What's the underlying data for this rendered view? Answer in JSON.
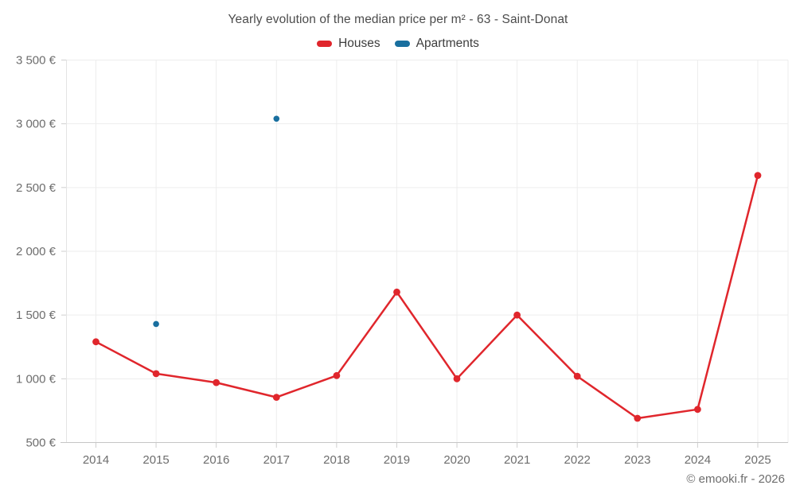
{
  "chart_data": {
    "type": "line",
    "title": "Yearly evolution of the median price per m² - 63 - Saint-Donat",
    "categories": [
      "2014",
      "2015",
      "2016",
      "2017",
      "2018",
      "2019",
      "2020",
      "2021",
      "2022",
      "2023",
      "2024",
      "2025"
    ],
    "series": [
      {
        "name": "Houses",
        "color": "#e0262c",
        "style": "line+markers",
        "values": [
          1290,
          1040,
          970,
          855,
          1025,
          1680,
          1000,
          1500,
          1020,
          690,
          760,
          2595
        ]
      },
      {
        "name": "Apartments",
        "color": "#196f9f",
        "style": "markers",
        "values": [
          null,
          1430,
          null,
          3040,
          null,
          null,
          null,
          null,
          null,
          null,
          null,
          null
        ]
      }
    ],
    "ylabel": "",
    "xlabel": "",
    "ylim": [
      500,
      3500
    ],
    "y_tick_step": 500,
    "y_tick_labels": [
      "500 €",
      "1 000 €",
      "1 500 €",
      "2 000 €",
      "2 500 €",
      "3 000 €",
      "3 500 €"
    ],
    "grid": true,
    "legend_position": "top"
  },
  "footer": {
    "copyright": "© emooki.fr - 2026"
  }
}
